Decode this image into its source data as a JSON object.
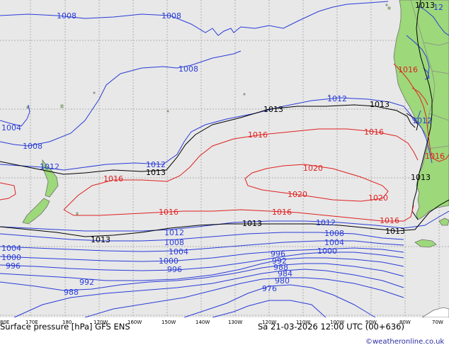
{
  "footer": {
    "title": "Surface pressure [hPa] GFS ENS",
    "datetime": "Sa 21-03-2026 12:00 UTC (00+636)",
    "credit": "©weatheronline.co.uk"
  },
  "axis": {
    "lon_labels": [
      "80E",
      "170E",
      "180",
      "170W",
      "160W",
      "150W",
      "140W",
      "130W",
      "120W",
      "110W",
      "100W",
      "90W",
      "80W",
      "70W"
    ]
  },
  "colors": {
    "ocean": "#e8e8e8",
    "land": "#9dd87a",
    "low_isobar": "#2a3cd8",
    "normal_isobar": "#000000",
    "high_isobar": "#e02020",
    "grid": "#b0b0b0",
    "coast": "#707070",
    "credit": "#2a2aa0"
  },
  "isobar_labels": {
    "l1008a": "1008",
    "l1008b": "1008",
    "l1008c": "1008",
    "l1008d": "1008",
    "l1008e": "1008",
    "l1008f": "1008",
    "l1004a": "1004",
    "l1004b": "1004",
    "l1004c": "1004",
    "l1004d": "1004",
    "l1012a": "1012",
    "l1012b": "1012",
    "l1012c": "1012",
    "l1012d": "1012",
    "l1012e": "1012",
    "l1013a": "1013",
    "l1013b": "1013",
    "l1013c": "1013",
    "l1013d": "1013",
    "l1013e": "1013",
    "l1013f": "1013",
    "l1013g": "1013",
    "l1016a": "1016",
    "l1016b": "1016",
    "l1016c": "1016",
    "l1016d": "1016",
    "l1016e": "1016",
    "l1016f": "1016",
    "l1016g": "1016",
    "l1020a": "1020",
    "l1020b": "1020",
    "l1020c": "1020",
    "l1000a": "1000",
    "l1000b": "1000",
    "l1000c": "1000",
    "l996a": "996",
    "l996b": "996",
    "l996c": "996",
    "l992a": "992",
    "l992b": "992",
    "l988a": "988",
    "l988b": "988",
    "l984": "984",
    "l980": "980",
    "l976": "976",
    "l12top": "12"
  }
}
